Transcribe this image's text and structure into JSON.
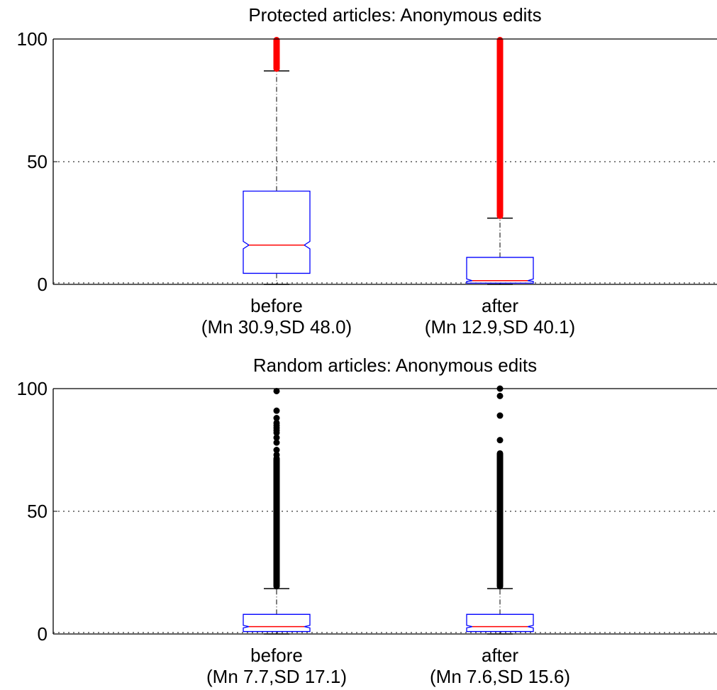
{
  "chart_data": [
    {
      "type": "box",
      "title": "Protected articles: Anonymous edits",
      "ylim": [
        0,
        100
      ],
      "yticks": [
        0,
        50,
        100
      ],
      "grid": "horizontal-dotted",
      "outlier_color": "#ff0000",
      "box_color": "#0000ff",
      "median_color": "#ff0000",
      "boxes": [
        {
          "name": "before",
          "stats_label": "(Mn 30.9,SD 48.0)",
          "q1": 4.5,
          "median": 16,
          "q3": 38,
          "whisker_low": 0,
          "whisker_high": 87,
          "notch": [
            14.5,
            17.5
          ],
          "outlier_range": [
            87.5,
            100
          ]
        },
        {
          "name": "after",
          "stats_label": "(Mn 12.9,SD 40.1)",
          "q1": 0.5,
          "median": 1.5,
          "q3": 11,
          "whisker_low": 0,
          "whisker_high": 27,
          "notch": [
            1.2,
            2.2
          ],
          "outlier_range": [
            27.5,
            100
          ]
        }
      ]
    },
    {
      "type": "box",
      "title": "Random articles: Anonymous edits",
      "ylim": [
        0,
        100
      ],
      "yticks": [
        0,
        50,
        100
      ],
      "grid": "horizontal-dotted",
      "outlier_color": "#000000",
      "box_color": "#0000ff",
      "median_color": "#ff0000",
      "boxes": [
        {
          "name": "before",
          "stats_label": "(Mn 7.7,SD 17.1)",
          "q1": 1,
          "median": 3,
          "q3": 8,
          "whisker_low": 0,
          "whisker_high": 18.5,
          "notch": [
            2.5,
            3.5
          ],
          "dense_outlier_range": [
            19,
            72
          ],
          "outliers": [
            73,
            75,
            78,
            80,
            82,
            83,
            84,
            85,
            86,
            88,
            91,
            99
          ]
        },
        {
          "name": "after",
          "stats_label": "(Mn 7.6,SD 15.6)",
          "q1": 1,
          "median": 3,
          "q3": 8,
          "whisker_low": 0,
          "whisker_high": 18.5,
          "notch": [
            2.5,
            3.5
          ],
          "dense_outlier_range": [
            19,
            74
          ],
          "outliers": [
            79,
            89,
            97,
            100
          ]
        }
      ]
    }
  ]
}
